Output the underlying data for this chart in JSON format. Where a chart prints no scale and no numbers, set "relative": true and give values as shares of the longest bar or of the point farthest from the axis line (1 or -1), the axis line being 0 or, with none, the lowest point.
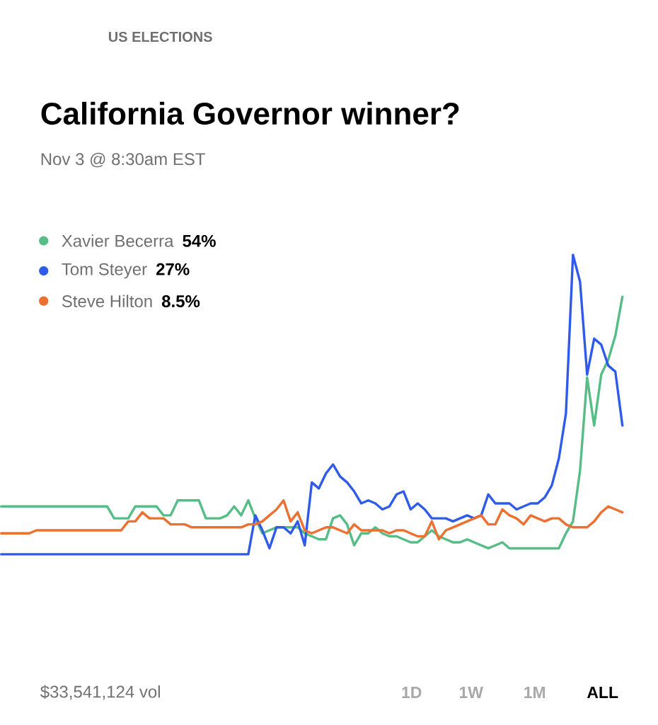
{
  "chart_data": {
    "type": "line",
    "title": "California Governor winner?",
    "subtitle": "Nov 3 @ 8:30am EST",
    "relative": true,
    "legend": "top left",
    "annotations": [
      "US ELECTIONS",
      "54%",
      "27%",
      "8.5%",
      "$33,541,124 vol",
      "1D",
      "1W",
      "1M",
      "ALL"
    ],
    "categories": [
      null,
      null,
      null,
      null,
      null,
      null,
      null,
      null,
      null,
      null,
      null,
      null,
      null,
      null,
      null,
      null,
      null,
      null,
      null,
      null,
      null,
      null,
      null,
      null,
      null,
      null,
      null,
      null,
      null,
      null,
      null,
      null,
      null,
      null,
      null,
      null,
      null,
      null,
      null,
      null,
      null,
      null,
      null,
      null,
      null,
      null,
      null,
      null,
      null,
      null,
      null,
      null,
      null,
      null,
      null,
      null,
      null,
      null,
      null,
      null,
      null,
      null,
      null,
      null,
      null,
      null,
      null,
      null,
      null,
      null,
      null,
      null,
      null,
      null,
      null,
      null,
      null,
      null,
      null,
      null,
      null,
      null,
      null,
      null,
      null,
      null,
      null,
      null,
      null
    ],
    "series": [
      {
        "name": "Xavier Becerra",
        "color": "#56bd86",
        "values": [
          0.16,
          0.16,
          0.16,
          0.16,
          0.16,
          0.16,
          0.16,
          0.16,
          0.16,
          0.16,
          0.16,
          0.16,
          0.16,
          0.16,
          0.16,
          0.16,
          0.12,
          0.12,
          0.12,
          0.16,
          0.16,
          0.16,
          0.16,
          0.13,
          0.13,
          0.18,
          0.18,
          0.18,
          0.18,
          0.12,
          0.12,
          0.12,
          0.13,
          0.16,
          0.13,
          0.18,
          0.12,
          0.07,
          0.08,
          0.09,
          0.09,
          0.09,
          0.09,
          0.07,
          0.06,
          0.05,
          0.05,
          0.12,
          0.13,
          0.1,
          0.03,
          0.07,
          0.07,
          0.09,
          0.07,
          0.06,
          0.06,
          0.05,
          0.04,
          0.04,
          0.06,
          0.08,
          0.06,
          0.05,
          0.04,
          0.04,
          0.05,
          0.04,
          0.03,
          0.02,
          0.03,
          0.04,
          0.02,
          0.02,
          0.02,
          0.02,
          0.02,
          0.02,
          0.02,
          0.02,
          0.07,
          0.11,
          0.28,
          0.59,
          0.43,
          0.6,
          0.65,
          0.73,
          0.86
        ]
      },
      {
        "name": "Tom Steyer",
        "color": "#2f5bea",
        "values": [
          0,
          0,
          0,
          0,
          0,
          0,
          0,
          0,
          0,
          0,
          0,
          0,
          0,
          0,
          0,
          0,
          0,
          0,
          0,
          0,
          0,
          0,
          0,
          0,
          0,
          0,
          0,
          0,
          0,
          0,
          0,
          0,
          0,
          0,
          0,
          0,
          0.13,
          0.08,
          0.02,
          0.09,
          0.09,
          0.07,
          0.11,
          0.03,
          0.24,
          0.22,
          0.27,
          0.3,
          0.26,
          0.24,
          0.21,
          0.17,
          0.18,
          0.17,
          0.15,
          0.16,
          0.2,
          0.21,
          0.15,
          0.17,
          0.15,
          0.12,
          0.12,
          0.12,
          0.11,
          0.12,
          0.13,
          0.12,
          0.13,
          0.2,
          0.17,
          0.17,
          0.17,
          0.15,
          0.16,
          0.17,
          0.17,
          0.19,
          0.23,
          0.32,
          0.47,
          1,
          0.91,
          0.6,
          0.72,
          0.7,
          0.63,
          0.61,
          0.43
        ]
      },
      {
        "name": "Steve Hilton",
        "color": "#ee7030",
        "values": [
          0.07,
          0.07,
          0.07,
          0.07,
          0.07,
          0.08,
          0.08,
          0.08,
          0.08,
          0.08,
          0.08,
          0.08,
          0.08,
          0.08,
          0.08,
          0.08,
          0.08,
          0.08,
          0.11,
          0.11,
          0.14,
          0.12,
          0.12,
          0.12,
          0.1,
          0.1,
          0.1,
          0.09,
          0.09,
          0.09,
          0.09,
          0.09,
          0.09,
          0.09,
          0.09,
          0.1,
          0.1,
          0.11,
          0.13,
          0.15,
          0.18,
          0.11,
          0.14,
          0.08,
          0.07,
          0.08,
          0.09,
          0.09,
          0.08,
          0.07,
          0.1,
          0.08,
          0.08,
          0.08,
          0.08,
          0.07,
          0.08,
          0.08,
          0.07,
          0.06,
          0.06,
          0.11,
          0.05,
          0.08,
          0.09,
          0.1,
          0.11,
          0.12,
          0.13,
          0.1,
          0.1,
          0.15,
          0.13,
          0.12,
          0.1,
          0.13,
          0.12,
          0.11,
          0.12,
          0.12,
          0.1,
          0.09,
          0.09,
          0.09,
          0.11,
          0.14,
          0.16,
          0.15,
          0.14
        ]
      }
    ]
  }
}
